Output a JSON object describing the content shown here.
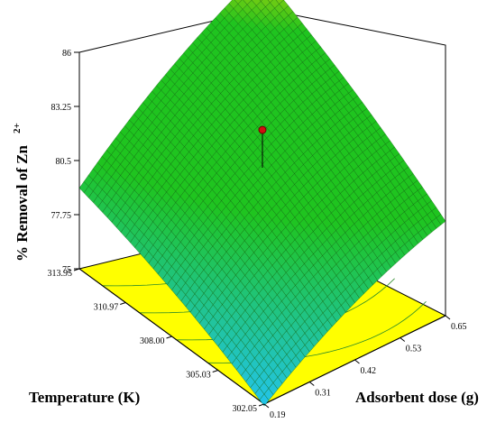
{
  "chart_data": {
    "type": "surface3d",
    "title": "",
    "zlabel": "% Removal of Zn",
    "zlabel_superscript": "2+",
    "xlabel": "Adsorbent dose (g)",
    "ylabel": "Temperature (K)",
    "x_ticks": [
      "0.19",
      "0.31",
      "0.42",
      "0.53",
      "0.65"
    ],
    "y_ticks": [
      "302.05",
      "305.03",
      "308.00",
      "310.97",
      "313.95"
    ],
    "z_ticks": [
      "75",
      "77.75",
      "80.5",
      "83.25",
      "86"
    ],
    "xlim": [
      0.19,
      0.65
    ],
    "ylim": [
      302.05,
      313.95
    ],
    "zlim": [
      75,
      86
    ],
    "corner_values": [
      {
        "x": 0.19,
        "y": 302.05,
        "z": 74.9
      },
      {
        "x": 0.65,
        "y": 302.05,
        "z": 79.8
      },
      {
        "x": 0.19,
        "y": 313.95,
        "z": 79.1
      },
      {
        "x": 0.65,
        "y": 313.95,
        "z": 85.6
      }
    ],
    "design_point": {
      "x": 0.42,
      "y": 308.0,
      "z": 83.25
    },
    "colors": {
      "surface_high": "#e8d800",
      "surface_mid": "#1fc41f",
      "surface_low": "#22c4e8",
      "floor": "#ffff00",
      "point": "#d01010"
    }
  }
}
